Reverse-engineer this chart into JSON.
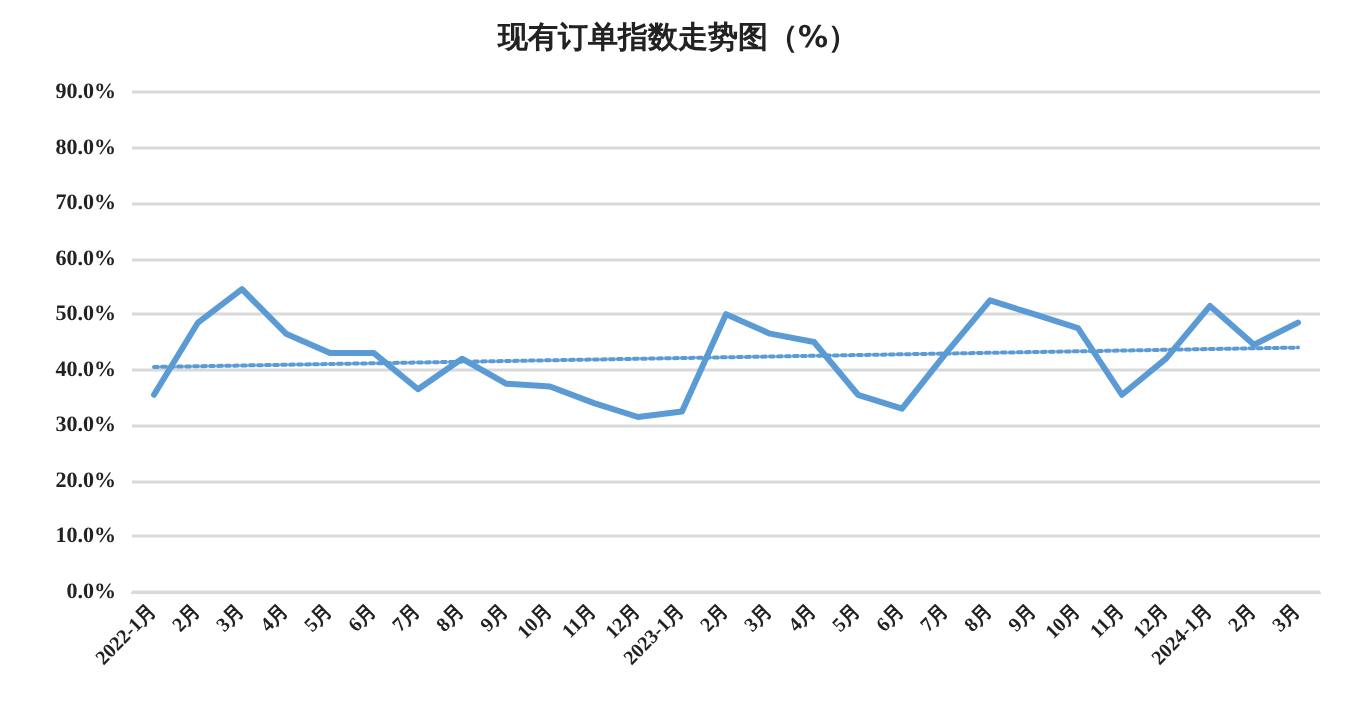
{
  "chart_data": {
    "type": "line",
    "title": "现有订单指数走势图（%）",
    "categories": [
      "2022-1月",
      "2月",
      "3月",
      "4月",
      "5月",
      "6月",
      "7月",
      "8月",
      "9月",
      "10月",
      "11月",
      "12月",
      "2023-1月",
      "2月",
      "3月",
      "4月",
      "5月",
      "6月",
      "7月",
      "8月",
      "9月",
      "10月",
      "11月",
      "12月",
      "2024-1月",
      "2月",
      "3月"
    ],
    "series": [
      {
        "color": "#5b9bd5",
        "line_style": "solid",
        "values": [
          35.5,
          48.5,
          54.5,
          46.5,
          43,
          43,
          36.5,
          42,
          37.5,
          37,
          34,
          31.5,
          32.5,
          50,
          46.5,
          45,
          35.5,
          33,
          43,
          52.5,
          50,
          47.5,
          35.5,
          42,
          51.5,
          44.5,
          48.5
        ]
      },
      {
        "color": "#5b9bd5",
        "line_style": "dotted",
        "values": [
          40.5,
          null,
          null,
          null,
          null,
          null,
          null,
          null,
          null,
          null,
          null,
          null,
          null,
          null,
          null,
          null,
          null,
          null,
          null,
          null,
          null,
          null,
          null,
          null,
          null,
          null,
          44
        ]
      }
    ],
    "ylim": [
      0,
      90
    ],
    "yticks": [
      {
        "value": 0,
        "label": "0.0%"
      },
      {
        "value": 10,
        "label": "10.0%"
      },
      {
        "value": 20,
        "label": "20.0%"
      },
      {
        "value": 30,
        "label": "30.0%"
      },
      {
        "value": 40,
        "label": "40.0%"
      },
      {
        "value": 50,
        "label": "50.0%"
      },
      {
        "value": 60,
        "label": "60.0%"
      },
      {
        "value": 70,
        "label": "70.0%"
      },
      {
        "value": 80,
        "label": "80.0%"
      },
      {
        "value": 90,
        "label": "90.0%"
      }
    ],
    "grid": "y",
    "marker": "none"
  }
}
